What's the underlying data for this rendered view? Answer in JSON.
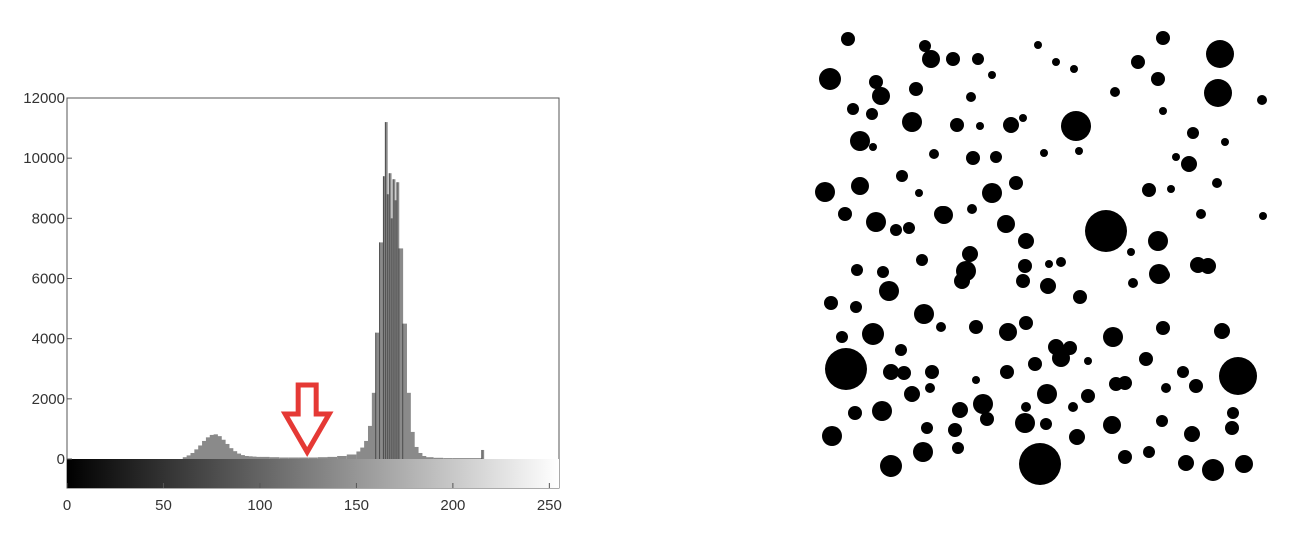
{
  "chart_data": {
    "type": "bar",
    "title": "",
    "xlabel": "",
    "ylabel": "",
    "xlim": [
      0,
      255
    ],
    "ylim": [
      0,
      12000
    ],
    "x_ticks": [
      0,
      50,
      100,
      150,
      200,
      250
    ],
    "y_ticks": [
      0,
      2000,
      4000,
      6000,
      8000,
      10000,
      12000
    ],
    "grid": false,
    "legend": "none",
    "colorbar": "grayscale gradient from black (0) to white (255) below the x axis",
    "threshold_marker": {
      "x": 125,
      "description": "red outlined down arrow",
      "color": "#e53935"
    },
    "x": [
      60,
      62,
      64,
      66,
      68,
      70,
      72,
      74,
      76,
      78,
      80,
      82,
      84,
      86,
      88,
      90,
      92,
      94,
      96,
      98,
      100,
      105,
      110,
      115,
      120,
      125,
      130,
      135,
      140,
      145,
      150,
      152,
      154,
      156,
      158,
      160,
      162,
      164,
      165,
      166,
      167,
      168,
      169,
      170,
      171,
      172,
      174,
      176,
      178,
      180,
      182,
      184,
      186,
      190,
      195,
      200,
      215
    ],
    "values": [
      60,
      120,
      200,
      320,
      450,
      600,
      720,
      800,
      820,
      760,
      640,
      500,
      360,
      260,
      180,
      130,
      100,
      90,
      80,
      70,
      70,
      60,
      50,
      50,
      50,
      50,
      60,
      70,
      100,
      150,
      250,
      380,
      600,
      1100,
      2200,
      4200,
      7200,
      9400,
      11200,
      8800,
      9500,
      8000,
      9300,
      8600,
      9200,
      7000,
      4500,
      2200,
      900,
      400,
      200,
      100,
      60,
      40,
      30,
      30,
      300
    ]
  },
  "colors": {
    "histogram_fill": "#8a8a8a",
    "spike_line": "#4a4a4a",
    "axis": "#555555",
    "arrow": "#e53935",
    "blobs": "#000000"
  },
  "blob_image": {
    "description_icon": "binary-threshold-image",
    "blobs": [
      [
        36,
        13,
        7
      ],
      [
        113,
        20,
        6
      ],
      [
        119,
        33,
        9
      ],
      [
        141,
        33,
        7
      ],
      [
        166,
        33,
        6
      ],
      [
        226,
        19,
        4
      ],
      [
        244,
        36,
        4
      ],
      [
        326,
        36,
        7
      ],
      [
        351,
        12,
        7
      ],
      [
        408,
        28,
        14
      ],
      [
        450,
        74,
        5
      ],
      [
        18,
        53,
        11
      ],
      [
        64,
        56,
        7
      ],
      [
        69,
        70,
        9
      ],
      [
        104,
        63,
        7
      ],
      [
        159,
        71,
        5
      ],
      [
        180,
        49,
        4
      ],
      [
        262,
        43,
        4
      ],
      [
        303,
        66,
        5
      ],
      [
        346,
        53,
        7
      ],
      [
        406,
        67,
        14
      ],
      [
        41,
        83,
        6
      ],
      [
        60,
        88,
        6
      ],
      [
        100,
        96,
        10
      ],
      [
        145,
        99,
        7
      ],
      [
        168,
        100,
        4
      ],
      [
        199,
        99,
        8
      ],
      [
        211,
        92,
        4
      ],
      [
        264,
        100,
        15
      ],
      [
        351,
        85,
        4
      ],
      [
        381,
        107,
        6
      ],
      [
        413,
        116,
        4
      ],
      [
        48,
        115,
        10
      ],
      [
        61,
        121,
        4
      ],
      [
        122,
        128,
        5
      ],
      [
        161,
        132,
        7
      ],
      [
        184,
        131,
        6
      ],
      [
        232,
        127,
        4
      ],
      [
        267,
        125,
        4
      ],
      [
        364,
        131,
        4
      ],
      [
        377,
        138,
        8
      ],
      [
        405,
        157,
        5
      ],
      [
        13,
        166,
        10
      ],
      [
        48,
        160,
        9
      ],
      [
        90,
        150,
        6
      ],
      [
        107,
        167,
        4
      ],
      [
        132,
        189,
        9
      ],
      [
        180,
        167,
        10
      ],
      [
        204,
        157,
        7
      ],
      [
        337,
        164,
        7
      ],
      [
        359,
        163,
        4
      ],
      [
        389,
        188,
        5
      ],
      [
        33,
        188,
        7
      ],
      [
        64,
        196,
        10
      ],
      [
        84,
        204,
        6
      ],
      [
        97,
        202,
        6
      ],
      [
        130,
        188,
        8
      ],
      [
        160,
        183,
        5
      ],
      [
        194,
        198,
        9
      ],
      [
        214,
        215,
        8
      ],
      [
        294,
        205,
        21
      ],
      [
        346,
        215,
        10
      ],
      [
        451,
        190,
        4
      ],
      [
        45,
        244,
        6
      ],
      [
        71,
        246,
        6
      ],
      [
        110,
        234,
        6
      ],
      [
        154,
        245,
        10
      ],
      [
        158,
        228,
        8
      ],
      [
        213,
        240,
        7
      ],
      [
        237,
        238,
        4
      ],
      [
        249,
        236,
        5
      ],
      [
        319,
        226,
        4
      ],
      [
        347,
        248,
        10
      ],
      [
        386,
        239,
        8
      ],
      [
        19,
        277,
        7
      ],
      [
        44,
        281,
        6
      ],
      [
        77,
        265,
        10
      ],
      [
        112,
        288,
        10
      ],
      [
        150,
        255,
        8
      ],
      [
        211,
        255,
        7
      ],
      [
        236,
        260,
        8
      ],
      [
        268,
        271,
        7
      ],
      [
        321,
        257,
        5
      ],
      [
        352,
        249,
        6
      ],
      [
        396,
        240,
        8
      ],
      [
        30,
        311,
        6
      ],
      [
        61,
        308,
        11
      ],
      [
        89,
        324,
        6
      ],
      [
        129,
        301,
        5
      ],
      [
        164,
        301,
        7
      ],
      [
        196,
        306,
        9
      ],
      [
        214,
        297,
        7
      ],
      [
        244,
        321,
        8
      ],
      [
        258,
        322,
        7
      ],
      [
        301,
        311,
        10
      ],
      [
        351,
        302,
        7
      ],
      [
        410,
        305,
        8
      ],
      [
        34,
        343,
        21
      ],
      [
        79,
        346,
        8
      ],
      [
        92,
        347,
        7
      ],
      [
        120,
        346,
        7
      ],
      [
        164,
        354,
        4
      ],
      [
        195,
        346,
        7
      ],
      [
        223,
        338,
        7
      ],
      [
        249,
        332,
        9
      ],
      [
        276,
        335,
        4
      ],
      [
        304,
        358,
        7
      ],
      [
        334,
        333,
        7
      ],
      [
        371,
        346,
        6
      ],
      [
        426,
        350,
        19
      ],
      [
        100,
        368,
        8
      ],
      [
        118,
        362,
        5
      ],
      [
        148,
        384,
        8
      ],
      [
        171,
        378,
        10
      ],
      [
        214,
        381,
        5
      ],
      [
        235,
        368,
        10
      ],
      [
        276,
        370,
        7
      ],
      [
        313,
        357,
        7
      ],
      [
        354,
        362,
        5
      ],
      [
        384,
        360,
        7
      ],
      [
        421,
        387,
        6
      ],
      [
        43,
        387,
        7
      ],
      [
        70,
        385,
        10
      ],
      [
        115,
        402,
        6
      ],
      [
        143,
        404,
        7
      ],
      [
        175,
        393,
        7
      ],
      [
        213,
        397,
        10
      ],
      [
        234,
        398,
        6
      ],
      [
        261,
        381,
        5
      ],
      [
        300,
        399,
        9
      ],
      [
        350,
        395,
        6
      ],
      [
        380,
        408,
        8
      ],
      [
        420,
        402,
        7
      ],
      [
        20,
        410,
        10
      ],
      [
        79,
        440,
        11
      ],
      [
        111,
        426,
        10
      ],
      [
        146,
        422,
        6
      ],
      [
        228,
        438,
        21
      ],
      [
        265,
        411,
        8
      ],
      [
        313,
        431,
        7
      ],
      [
        337,
        426,
        6
      ],
      [
        374,
        437,
        8
      ],
      [
        401,
        444,
        11
      ],
      [
        432,
        438,
        9
      ]
    ]
  }
}
